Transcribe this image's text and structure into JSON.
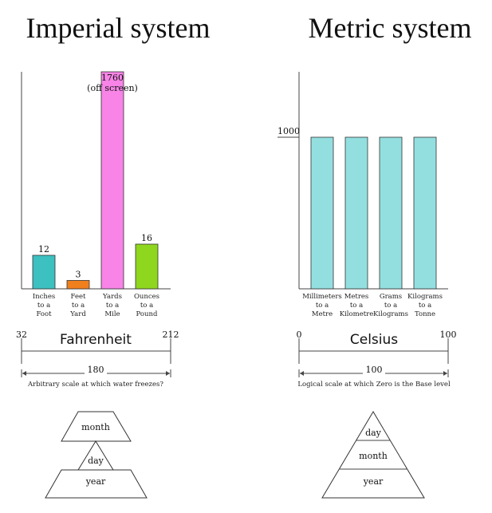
{
  "imperial": {
    "title": "Imperial system",
    "chart_data": {
      "type": "bar",
      "categories": [
        [
          "Inches",
          "to a",
          "Foot"
        ],
        [
          "Feet",
          "to a",
          "Yard"
        ],
        [
          "Yards",
          "to a",
          "Mile"
        ],
        [
          "Ounces",
          "to a",
          "Pound"
        ]
      ],
      "values": [
        12,
        3,
        1760,
        16
      ],
      "value_labels": [
        "12",
        "3",
        "1760",
        "16"
      ],
      "off_screen_note": "(off screen)",
      "colors": [
        "#3cc0c0",
        "#f07f1e",
        "#f784e6",
        "#8fd61f"
      ],
      "ylim": [
        0,
        20
      ]
    },
    "scale": {
      "title": "Fahrenheit",
      "left_value": "32",
      "right_value": "212",
      "span": "180",
      "caption": "Arbitrary scale at which water freezes?"
    },
    "pyramid": {
      "top": "month",
      "middle": "day",
      "bottom": "year"
    }
  },
  "metric": {
    "title": "Metric system",
    "chart_data": {
      "type": "bar",
      "categories": [
        [
          "Millimeters",
          "to a",
          "Metre"
        ],
        [
          "Metres",
          "to a",
          "Kilometre"
        ],
        [
          "Grams",
          "to a",
          "Kilograms"
        ],
        [
          "Kilograms",
          "to a",
          "Tonne"
        ]
      ],
      "values": [
        1000,
        1000,
        1000,
        1000
      ],
      "reference_label": "1000",
      "colors": [
        "#93dfe0",
        "#93dfe0",
        "#93dfe0",
        "#93dfe0"
      ],
      "ylim": [
        0,
        1400
      ]
    },
    "scale": {
      "title": "Celsius",
      "left_value": "0",
      "right_value": "100",
      "span": "100",
      "caption": "Logical scale at which Zero is the Base level"
    },
    "pyramid": {
      "top": "day",
      "middle": "month",
      "bottom": "year"
    }
  }
}
